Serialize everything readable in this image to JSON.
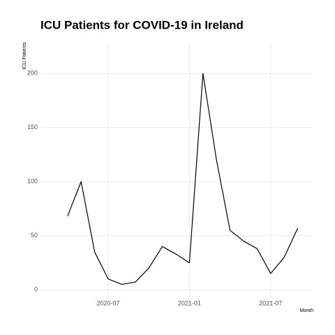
{
  "chart_data": {
    "type": "line",
    "title": "ICU Patients for COVID-19 in Ireland",
    "x_label": "Month",
    "y_label": "ICU Patients",
    "x": [
      "2020-04",
      "2020-05",
      "2020-06",
      "2020-07",
      "2020-08",
      "2020-09",
      "2020-10",
      "2020-11",
      "2020-12",
      "2021-01",
      "2021-02",
      "2021-03",
      "2021-04",
      "2021-05",
      "2021-06",
      "2021-07",
      "2021-08",
      "2021-09"
    ],
    "series": [
      {
        "name": "ICU Patients",
        "color": "#000000",
        "values": [
          68,
          100,
          35,
          10,
          5,
          7,
          20,
          40,
          33,
          25,
          200,
          120,
          55,
          45,
          38,
          15,
          30,
          57
        ]
      }
    ],
    "xlim": [
      "2020-02",
      "2021-10"
    ],
    "xticks": [
      "2020-07",
      "2021-01",
      "2021-07"
    ],
    "ylim": [
      -7,
      228
    ],
    "yticks": [
      0,
      50,
      100,
      150,
      200
    ],
    "grid": true
  }
}
